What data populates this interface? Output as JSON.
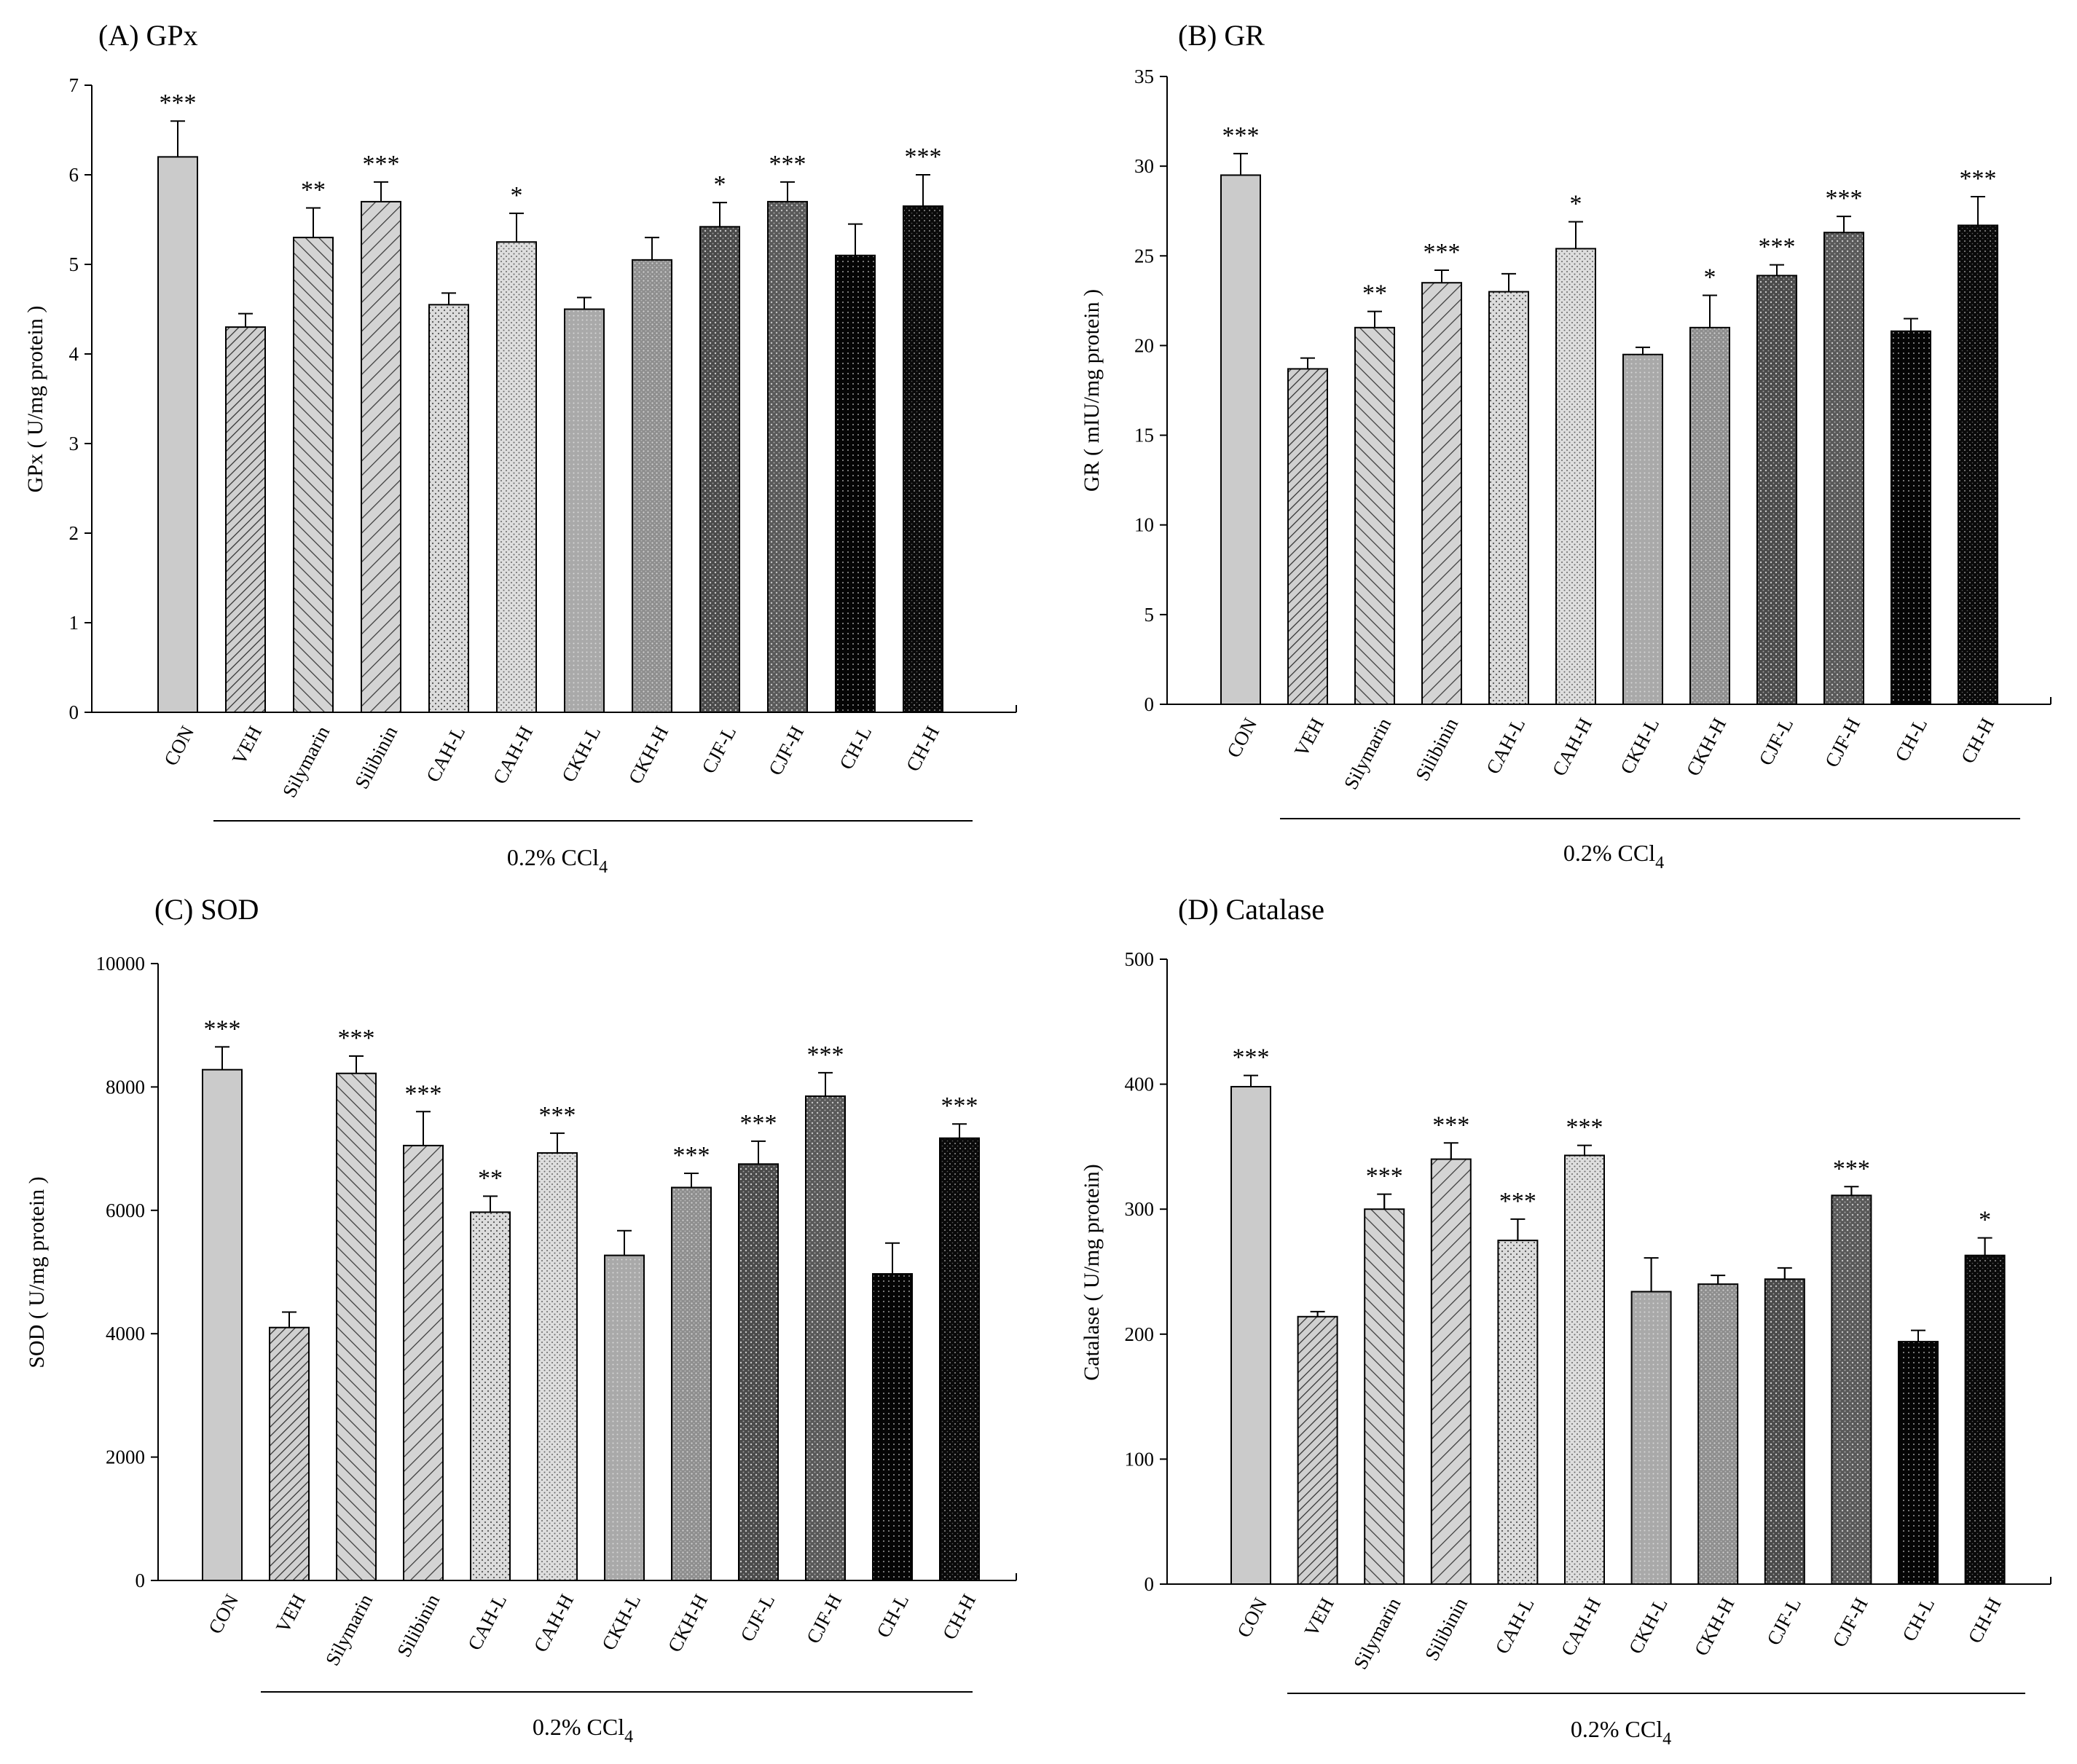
{
  "figure": {
    "group_label_main": "0.2% CCl",
    "group_label_sub": "4"
  },
  "bar_colors": [
    "#c8c8c8",
    "#b4b4b4",
    "#c4c4c4",
    "#c4c4c4",
    "#d2d2d2",
    "#d6d6d6",
    "#a8a8a8",
    "#9a9a9a",
    "#5a5a5a",
    "#686868",
    "#0a0a0a",
    "#141414"
  ],
  "chart_data": [
    {
      "type": "bar",
      "title": "(A) GPx",
      "ylabel": "GPx ( U/mg protein )",
      "ylim": [
        0,
        7
      ],
      "yticks": [
        0,
        1,
        2,
        3,
        4,
        5,
        6,
        7
      ],
      "categories": [
        "CON",
        "VEH",
        "Silymarin",
        "Silibinin",
        "CAH-L",
        "CAH-H",
        "CKH-L",
        "CKH-H",
        "CJF-L",
        "CJF-H",
        "CH-L",
        "CH-H"
      ],
      "values": [
        6.2,
        4.3,
        5.3,
        5.7,
        4.55,
        5.25,
        4.5,
        5.05,
        5.42,
        5.7,
        5.1,
        5.65
      ],
      "errors": [
        0.4,
        0.15,
        0.33,
        0.22,
        0.13,
        0.32,
        0.13,
        0.25,
        0.27,
        0.22,
        0.35,
        0.35
      ],
      "significance": [
        "***",
        "",
        "**",
        "***",
        "",
        "*",
        "",
        "",
        "*",
        "***",
        "",
        "***"
      ]
    },
    {
      "type": "bar",
      "title": "(B) GR",
      "ylabel": "GR ( mIU/mg protein )",
      "ylim": [
        0,
        35
      ],
      "yticks": [
        0,
        5,
        10,
        15,
        20,
        25,
        30,
        35
      ],
      "categories": [
        "CON",
        "VEH",
        "Silymarin",
        "Silibinin",
        "CAH-L",
        "CAH-H",
        "CKH-L",
        "CKH-H",
        "CJF-L",
        "CJF-H",
        "CH-L",
        "CH-H"
      ],
      "values": [
        29.5,
        18.7,
        21.0,
        23.5,
        23.0,
        25.4,
        19.5,
        21.0,
        23.9,
        26.3,
        20.8,
        26.7
      ],
      "errors": [
        1.2,
        0.6,
        0.9,
        0.7,
        1.0,
        1.5,
        0.4,
        1.8,
        0.6,
        0.9,
        0.7,
        1.6
      ],
      "significance": [
        "***",
        "",
        "**",
        "***",
        "",
        "*",
        "",
        "*",
        "***",
        "***",
        "",
        "***"
      ]
    },
    {
      "type": "bar",
      "title": "(C) SOD",
      "ylabel": "SOD ( U/mg protein )",
      "ylim": [
        0,
        10000
      ],
      "yticks": [
        0,
        2000,
        4000,
        6000,
        8000,
        10000
      ],
      "categories": [
        "CON",
        "VEH",
        "Silymarin",
        "Silibinin",
        "CAH-L",
        "CAH-H",
        "CKH-L",
        "CKH-H",
        "CJF-L",
        "CJF-H",
        "CH-L",
        "CH-H"
      ],
      "values": [
        8280,
        4100,
        8220,
        7050,
        5970,
        6930,
        5270,
        6370,
        6750,
        7850,
        4970,
        7170
      ],
      "errors": [
        370,
        250,
        280,
        550,
        260,
        320,
        400,
        230,
        370,
        380,
        500,
        230
      ],
      "significance": [
        "***",
        "",
        "***",
        "***",
        "**",
        "***",
        "",
        "***",
        "***",
        "***",
        "",
        "***"
      ]
    },
    {
      "type": "bar",
      "title": "(D) Catalase",
      "ylabel": "Catalase ( U/mg protein)",
      "ylim": [
        0,
        500
      ],
      "yticks": [
        0,
        100,
        200,
        300,
        400,
        500
      ],
      "categories": [
        "CON",
        "VEH",
        "Silymarin",
        "Silibinin",
        "CAH-L",
        "CAH-H",
        "CKH-L",
        "CKH-H",
        "CJF-L",
        "CJF-H",
        "CH-L",
        "CH-H"
      ],
      "values": [
        398,
        214,
        300,
        340,
        275,
        343,
        234,
        240,
        244,
        311,
        194,
        263
      ],
      "errors": [
        9,
        4,
        12,
        13,
        17,
        8,
        27,
        7,
        9,
        7,
        9,
        14
      ],
      "significance": [
        "***",
        "",
        "***",
        "***",
        "***",
        "***",
        "",
        "",
        "",
        "***",
        "",
        "*"
      ]
    }
  ]
}
